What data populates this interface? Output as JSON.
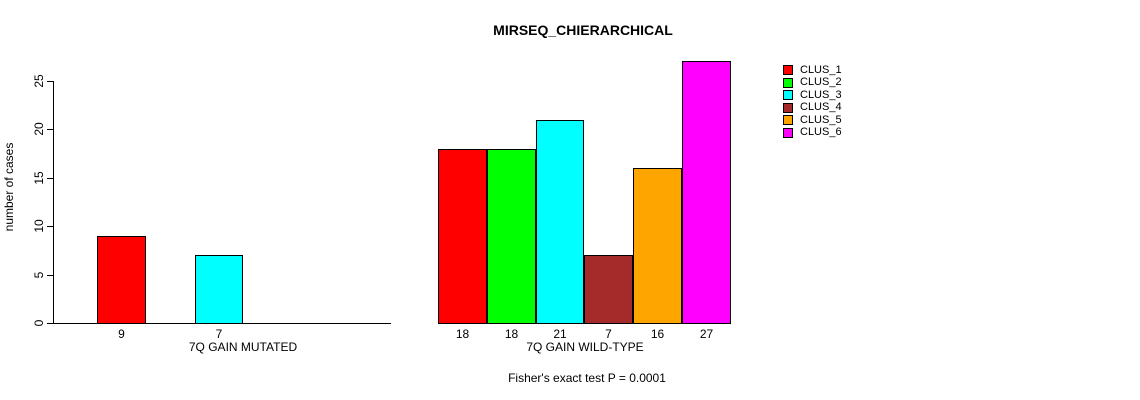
{
  "chart_data": {
    "type": "bar",
    "title": "MIRSEQ_CHIERARCHICAL",
    "ylabel": "number of cases",
    "ylim": [
      0,
      27
    ],
    "yticks": [
      0,
      5,
      10,
      15,
      20,
      25
    ],
    "grid": false,
    "legend_position": "right",
    "series_names": [
      "CLUS_1",
      "CLUS_2",
      "CLUS_3",
      "CLUS_4",
      "CLUS_5",
      "CLUS_6"
    ],
    "colors": [
      "#ff0000",
      "#00ff00",
      "#00ffff",
      "#a52a2a",
      "#ffa500",
      "#ff00ff"
    ],
    "groups": [
      {
        "label": "7Q GAIN MUTATED",
        "values": [
          9,
          0,
          7,
          0,
          0,
          0
        ]
      },
      {
        "label": "7Q GAIN WILD-TYPE",
        "values": [
          18,
          18,
          21,
          7,
          16,
          27
        ]
      }
    ],
    "annotation": "Fisher's exact test P = 0.0001"
  }
}
